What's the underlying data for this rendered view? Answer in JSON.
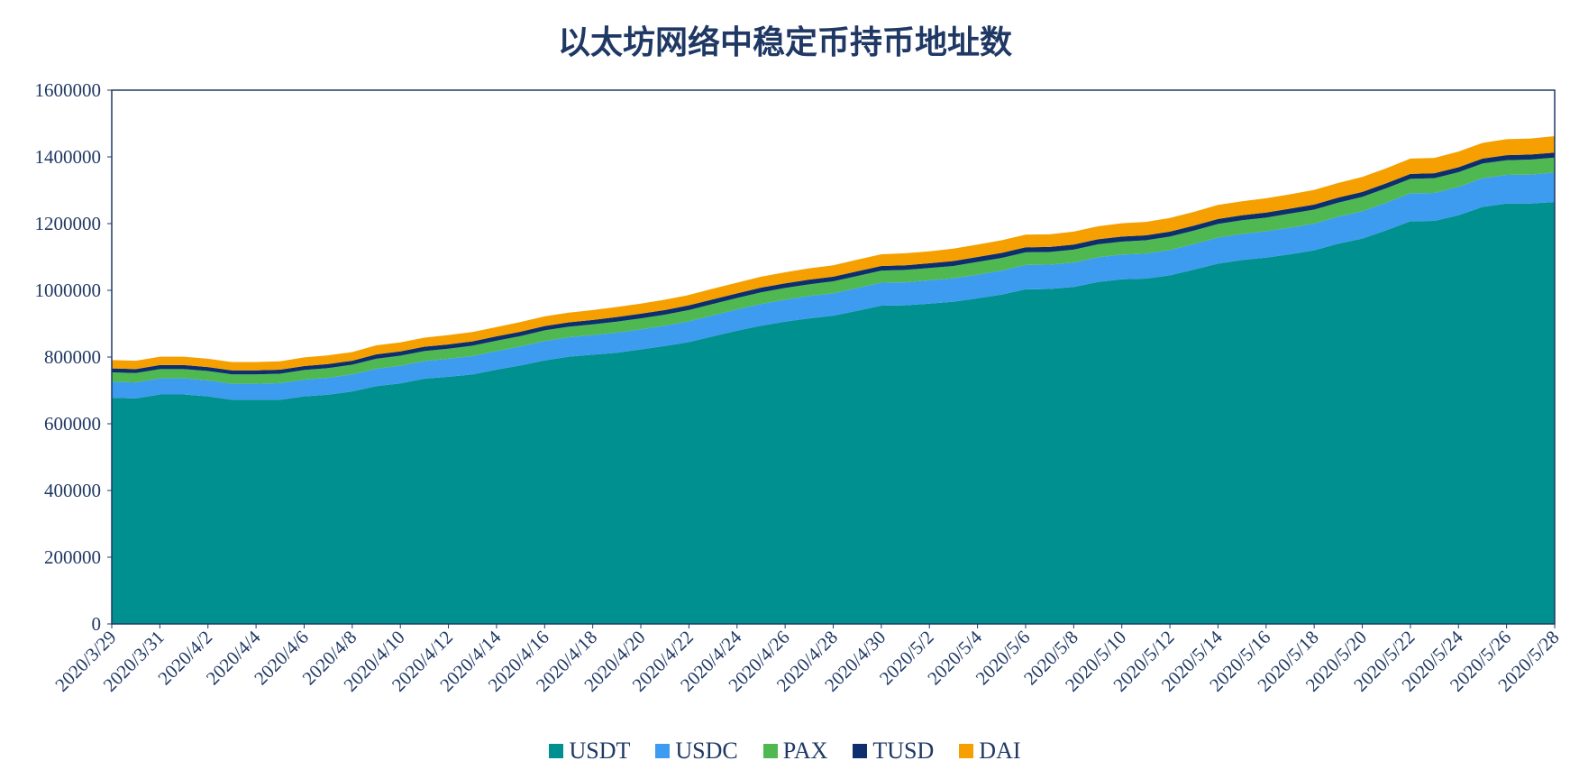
{
  "chart_data": {
    "type": "area",
    "stacked": true,
    "title": "以太坊网络中稳定币持币地址数",
    "xlabel": "",
    "ylabel": "",
    "ylim": [
      0,
      1600000
    ],
    "yticks": [
      "0",
      "200000",
      "400000",
      "600000",
      "800000",
      "1000000",
      "1200000",
      "1400000",
      "1600000"
    ],
    "grid": false,
    "legend_position": "bottom",
    "x": [
      "2020/3/29",
      "2020/3/30",
      "2020/3/31",
      "2020/4/1",
      "2020/4/2",
      "2020/4/3",
      "2020/4/4",
      "2020/4/5",
      "2020/4/6",
      "2020/4/7",
      "2020/4/8",
      "2020/4/9",
      "2020/4/10",
      "2020/4/11",
      "2020/4/12",
      "2020/4/13",
      "2020/4/14",
      "2020/4/15",
      "2020/4/16",
      "2020/4/17",
      "2020/4/18",
      "2020/4/19",
      "2020/4/20",
      "2020/4/21",
      "2020/4/22",
      "2020/4/23",
      "2020/4/24",
      "2020/4/25",
      "2020/4/26",
      "2020/4/27",
      "2020/4/28",
      "2020/4/29",
      "2020/4/30",
      "2020/5/1",
      "2020/5/2",
      "2020/5/3",
      "2020/5/4",
      "2020/5/5",
      "2020/5/6",
      "2020/5/7",
      "2020/5/8",
      "2020/5/9",
      "2020/5/10",
      "2020/5/11",
      "2020/5/12",
      "2020/5/13",
      "2020/5/14",
      "2020/5/15",
      "2020/5/16",
      "2020/5/17",
      "2020/5/18",
      "2020/5/19",
      "2020/5/20",
      "2020/5/21",
      "2020/5/22",
      "2020/5/23",
      "2020/5/24",
      "2020/5/25",
      "2020/5/26",
      "2020/5/27",
      "2020/5/28"
    ],
    "xtick_labels": [
      "2020/3/29",
      "2020/3/31",
      "2020/4/2",
      "2020/4/4",
      "2020/4/6",
      "2020/4/8",
      "2020/4/10",
      "2020/4/12",
      "2020/4/14",
      "2020/4/16",
      "2020/4/18",
      "2020/4/20",
      "2020/4/22",
      "2020/4/24",
      "2020/4/26",
      "2020/4/28",
      "2020/4/30",
      "2020/5/2",
      "2020/5/4",
      "2020/5/6",
      "2020/5/8",
      "2020/5/10",
      "2020/5/12",
      "2020/5/14",
      "2020/5/16",
      "2020/5/18",
      "2020/5/20",
      "2020/5/22",
      "2020/5/24",
      "2020/5/26",
      "2020/5/28"
    ],
    "series": [
      {
        "name": "USDT",
        "color": "#009090",
        "values": [
          678000,
          676000,
          688000,
          688000,
          682000,
          672000,
          672000,
          672000,
          682000,
          687000,
          697000,
          713000,
          721000,
          735000,
          741000,
          748000,
          762000,
          775000,
          790000,
          801000,
          807000,
          813000,
          823000,
          833000,
          845000,
          862000,
          879000,
          894000,
          906000,
          916000,
          924000,
          939000,
          954000,
          955000,
          960000,
          966000,
          976000,
          987000,
          1003000,
          1004000,
          1010000,
          1025000,
          1033000,
          1035000,
          1045000,
          1062000,
          1080000,
          1091000,
          1098000,
          1108000,
          1120000,
          1140000,
          1155000,
          1180000,
          1207000,
          1208000,
          1225000,
          1250000,
          1260000,
          1260000,
          1265000
        ]
      },
      {
        "name": "USDC",
        "color": "#3d9cf0",
        "values": [
          48000,
          48000,
          48000,
          48000,
          48000,
          48000,
          48000,
          50000,
          50000,
          51000,
          51000,
          52000,
          53000,
          53000,
          54000,
          55000,
          56000,
          57000,
          58000,
          58000,
          59000,
          60000,
          60000,
          61000,
          62000,
          63000,
          64000,
          65000,
          66000,
          67000,
          67000,
          68000,
          69000,
          69000,
          70000,
          70000,
          71000,
          72000,
          73000,
          73000,
          73000,
          74000,
          74000,
          75000,
          76000,
          77000,
          78000,
          78000,
          79000,
          80000,
          80000,
          81000,
          82000,
          83000,
          84000,
          84000,
          85000,
          86000,
          86000,
          87000,
          88000
        ]
      },
      {
        "name": "PAX",
        "color": "#50b850",
        "values": [
          28000,
          28000,
          28000,
          28000,
          28000,
          28000,
          28000,
          28000,
          29000,
          29000,
          29000,
          30000,
          30000,
          30000,
          30000,
          31000,
          31000,
          31000,
          32000,
          32000,
          32000,
          33000,
          33000,
          33000,
          34000,
          34000,
          34000,
          35000,
          35000,
          35000,
          36000,
          36000,
          36000,
          37000,
          37000,
          37000,
          38000,
          38000,
          38000,
          38000,
          39000,
          39000,
          39000,
          40000,
          40000,
          40000,
          41000,
          41000,
          41000,
          42000,
          42000,
          42000,
          43000,
          43000,
          43000,
          44000,
          44000,
          44000,
          44000,
          45000,
          45000
        ]
      },
      {
        "name": "TUSD",
        "color": "#0d2f6e",
        "values": [
          12000,
          12000,
          12000,
          12000,
          12000,
          12000,
          12000,
          12000,
          12000,
          12000,
          12000,
          13000,
          13000,
          13000,
          13000,
          13000,
          13000,
          13000,
          13000,
          13000,
          13000,
          14000,
          14000,
          14000,
          14000,
          14000,
          14000,
          14000,
          14000,
          14000,
          14000,
          14000,
          14000,
          14000,
          14000,
          15000,
          15000,
          15000,
          15000,
          15000,
          15000,
          15000,
          15000,
          15000,
          15000,
          15000,
          15000,
          15000,
          15000,
          15000,
          15000,
          15000,
          15000,
          15000,
          15000,
          15000,
          15000,
          15000,
          15000,
          15000,
          15000
        ]
      },
      {
        "name": "DAI",
        "color": "#f5a000",
        "values": [
          25000,
          25000,
          25000,
          25000,
          25000,
          25000,
          25000,
          25000,
          26000,
          26000,
          26000,
          27000,
          27000,
          27000,
          28000,
          28000,
          28000,
          29000,
          29000,
          29000,
          30000,
          30000,
          30000,
          31000,
          31000,
          32000,
          32000,
          33000,
          33000,
          34000,
          34000,
          35000,
          35000,
          36000,
          36000,
          37000,
          37000,
          38000,
          38000,
          38000,
          39000,
          39000,
          40000,
          40000,
          41000,
          41000,
          42000,
          42000,
          43000,
          43000,
          44000,
          44000,
          45000,
          45000,
          46000,
          46000,
          47000,
          47000,
          48000,
          48000,
          49000
        ]
      }
    ]
  }
}
